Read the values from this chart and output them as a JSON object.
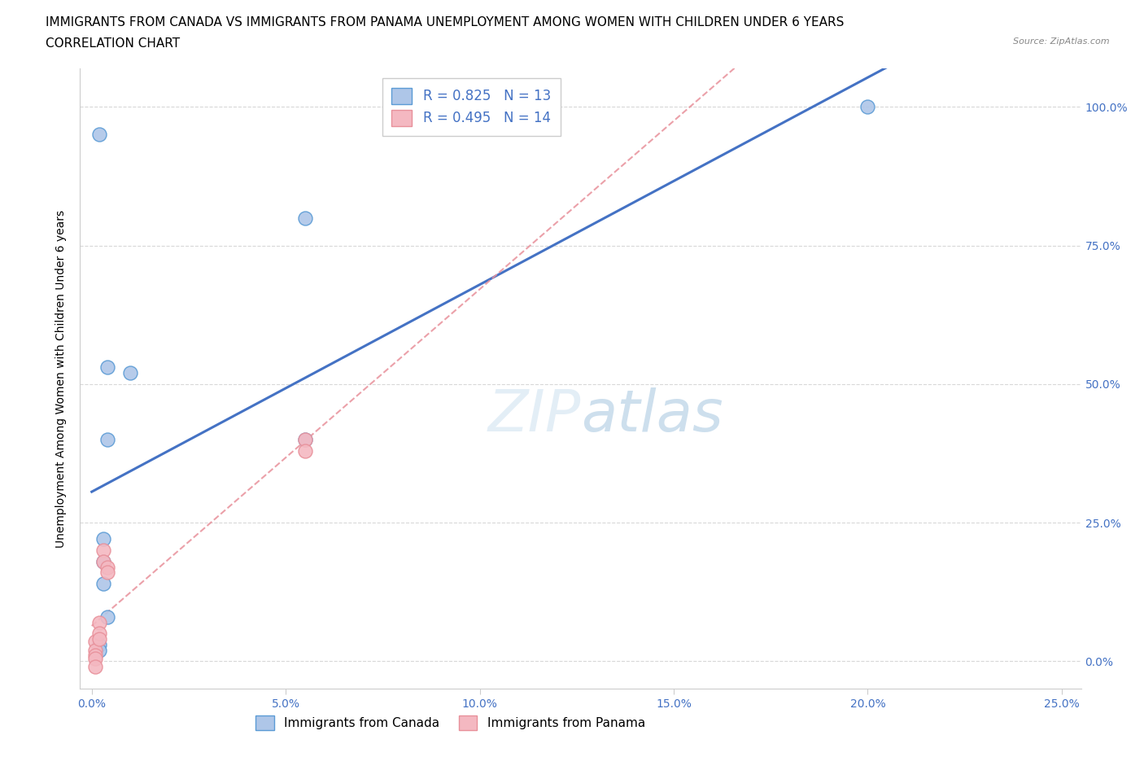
{
  "title_line1": "IMMIGRANTS FROM CANADA VS IMMIGRANTS FROM PANAMA UNEMPLOYMENT AMONG WOMEN WITH CHILDREN UNDER 6 YEARS",
  "title_line2": "CORRELATION CHART",
  "source": "Source: ZipAtlas.com",
  "ylabel": "Unemployment Among Women with Children Under 6 years",
  "watermark": "ZIPatlas",
  "canada_points": [
    [
      0.002,
      0.95
    ],
    [
      0.002,
      0.03
    ],
    [
      0.002,
      0.02
    ],
    [
      0.003,
      0.22
    ],
    [
      0.003,
      0.18
    ],
    [
      0.003,
      0.14
    ],
    [
      0.004,
      0.53
    ],
    [
      0.004,
      0.4
    ],
    [
      0.004,
      0.08
    ],
    [
      0.01,
      0.52
    ],
    [
      0.055,
      0.8
    ],
    [
      0.055,
      0.4
    ],
    [
      0.2,
      1.0
    ]
  ],
  "panama_points": [
    [
      0.001,
      0.035
    ],
    [
      0.001,
      0.02
    ],
    [
      0.001,
      0.01
    ],
    [
      0.001,
      0.005
    ],
    [
      0.001,
      -0.01
    ],
    [
      0.002,
      0.07
    ],
    [
      0.002,
      0.05
    ],
    [
      0.002,
      0.04
    ],
    [
      0.003,
      0.2
    ],
    [
      0.003,
      0.18
    ],
    [
      0.004,
      0.17
    ],
    [
      0.004,
      0.16
    ],
    [
      0.055,
      0.4
    ],
    [
      0.055,
      0.38
    ]
  ],
  "canada_R": 0.825,
  "canada_N": 13,
  "panama_R": 0.495,
  "panama_N": 14,
  "canada_dot_color": "#aec6e8",
  "canada_edge_color": "#5b9bd5",
  "canada_line_color": "#4472c4",
  "panama_dot_color": "#f4b8c1",
  "panama_edge_color": "#e8909a",
  "panama_line_color": "#e8909a",
  "xlim": [
    -0.003,
    0.255
  ],
  "ylim": [
    -0.05,
    1.07
  ],
  "xticks": [
    0.0,
    0.05,
    0.1,
    0.15,
    0.2,
    0.25
  ],
  "yticks": [
    0.0,
    0.25,
    0.5,
    0.75,
    1.0
  ],
  "title_fontsize": 11,
  "subtitle_fontsize": 11,
  "source_fontsize": 8,
  "axis_label_fontsize": 10,
  "tick_fontsize": 10,
  "legend_fontsize": 12,
  "background_color": "#ffffff",
  "grid_color": "#d8d8d8"
}
